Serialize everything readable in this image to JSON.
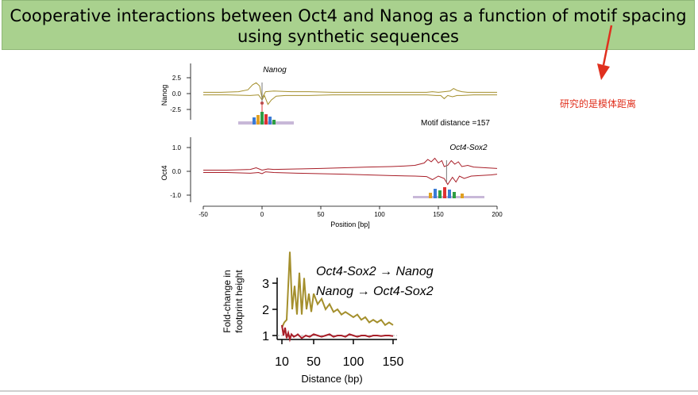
{
  "slide": {
    "title_line1": "Cooperative interactions between Oct4 and Nanog as a function of motif spacing",
    "title_line2": "using synthetic sequences",
    "note": "研究的是模体距离",
    "colors": {
      "banner": "#a9d18e",
      "arrow": "#e0301e",
      "note": "#e0301e",
      "nanog_series": "#a48f2c",
      "oct4_series": "#a81e28"
    }
  },
  "chart_data": [
    {
      "type": "line",
      "panel": "footprint-profiles",
      "xlabel": "Position [bp]",
      "xticks": [
        -50,
        0,
        50,
        100,
        150,
        200
      ],
      "xlim": [
        -50,
        200
      ],
      "tracks": [
        {
          "ylabel": "Nanog",
          "title": "Nanog",
          "yticks": [
            "2.5",
            "0.0",
            "-2.5"
          ],
          "ylim": [
            -3.5,
            3.5
          ],
          "annotation": "Motif distance =157",
          "motif_position": 0,
          "series": [
            {
              "strand": "forward",
              "x": [
                -50,
                -35,
                -20,
                -12,
                -8,
                -5,
                -2,
                0,
                3,
                10,
                25,
                40,
                60,
                80,
                100,
                120,
                140,
                145,
                150,
                155,
                160,
                163,
                166,
                170,
                175,
                180,
                190,
                200
              ],
              "values": [
                0.2,
                0.2,
                0.3,
                0.6,
                1.4,
                1.7,
                1.2,
                -0.7,
                0.3,
                0.4,
                0.3,
                0.3,
                0.2,
                0.2,
                0.2,
                0.2,
                0.2,
                0.3,
                0.2,
                0.3,
                0.4,
                0.8,
                0.5,
                0.3,
                0.2,
                0.2,
                0.2,
                0.2
              ]
            },
            {
              "strand": "reverse",
              "x": [
                -50,
                -30,
                -10,
                -3,
                0,
                2,
                5,
                8,
                12,
                20,
                40,
                60,
                80,
                100,
                120,
                140,
                148,
                152,
                155,
                158,
                162,
                166,
                170,
                180,
                190,
                200
              ],
              "values": [
                -0.2,
                -0.2,
                -0.3,
                -0.2,
                -1.0,
                -0.3,
                -1.7,
                -1.0,
                -0.4,
                -0.3,
                -0.3,
                -0.2,
                -0.2,
                -0.2,
                -0.2,
                -0.2,
                -0.3,
                -0.3,
                -0.8,
                -0.3,
                -0.5,
                -0.3,
                -0.3,
                -0.2,
                -0.2,
                -0.2
              ]
            }
          ]
        },
        {
          "ylabel": "Oct4",
          "title": "Oct4-Sox2",
          "yticks": [
            "1.0",
            "0.0",
            "-1.0"
          ],
          "ylim": [
            -1.5,
            1.5
          ],
          "motif_position": 157,
          "series": [
            {
              "strand": "forward",
              "x": [
                -50,
                -30,
                -10,
                -5,
                0,
                5,
                10,
                30,
                50,
                70,
                90,
                110,
                120,
                130,
                138,
                141,
                144,
                147,
                150,
                153,
                155,
                158,
                161,
                164,
                167,
                170,
                175,
                180,
                190,
                200
              ],
              "values": [
                0.05,
                0.05,
                0.08,
                0.15,
                0.05,
                0.1,
                0.08,
                0.1,
                0.12,
                0.15,
                0.18,
                0.2,
                0.22,
                0.25,
                0.35,
                0.5,
                0.4,
                0.55,
                0.35,
                0.45,
                0.2,
                0.25,
                0.45,
                0.3,
                0.4,
                0.2,
                0.25,
                0.18,
                0.15,
                0.12
              ]
            },
            {
              "strand": "reverse",
              "x": [
                -50,
                -30,
                -10,
                -3,
                0,
                3,
                10,
                30,
                50,
                70,
                90,
                110,
                130,
                140,
                145,
                150,
                155,
                158,
                162,
                165,
                168,
                172,
                178,
                185,
                195,
                200
              ],
              "values": [
                -0.05,
                -0.05,
                -0.08,
                -0.05,
                -0.1,
                -0.02,
                -0.05,
                -0.08,
                -0.1,
                -0.12,
                -0.15,
                -0.18,
                -0.2,
                -0.22,
                -0.35,
                -0.2,
                -0.3,
                -0.55,
                -0.25,
                -0.45,
                -0.2,
                -0.3,
                -0.2,
                -0.18,
                -0.15,
                -0.12
              ]
            }
          ]
        }
      ]
    },
    {
      "type": "line",
      "panel": "fold-change",
      "xlabel": "Distance (bp)",
      "ylabel": "Fold-change in footprint height",
      "xticks": [
        "10",
        "50",
        "100",
        "150"
      ],
      "yticks": [
        "1",
        "2",
        "3"
      ],
      "xlim": [
        10,
        150
      ],
      "ylim": [
        0.8,
        4.3
      ],
      "reference_line": 1,
      "series": [
        {
          "name": "Oct4-Sox2 → Nanog",
          "x": [
            10,
            13,
            16,
            20,
            23,
            26,
            29,
            32,
            35,
            38,
            41,
            44,
            47,
            50,
            55,
            60,
            65,
            70,
            75,
            80,
            85,
            90,
            95,
            100,
            105,
            110,
            115,
            120,
            125,
            130,
            135,
            140,
            145,
            150
          ],
          "values": [
            1.3,
            1.5,
            1.6,
            4.2,
            2.0,
            2.9,
            1.8,
            3.4,
            1.8,
            3.2,
            2.0,
            2.6,
            1.9,
            2.6,
            2.2,
            2.4,
            2.0,
            2.2,
            1.9,
            2.0,
            1.8,
            1.9,
            1.8,
            1.7,
            1.8,
            1.6,
            1.7,
            1.5,
            1.6,
            1.5,
            1.6,
            1.4,
            1.5,
            1.4
          ]
        },
        {
          "name": "Nanog → Oct4-Sox2",
          "x": [
            10,
            12,
            14,
            16,
            18,
            20,
            22,
            25,
            28,
            30,
            35,
            40,
            45,
            50,
            55,
            60,
            65,
            70,
            75,
            80,
            85,
            90,
            95,
            100,
            105,
            110,
            115,
            120,
            125,
            130,
            135,
            140,
            145,
            150
          ],
          "values": [
            1.4,
            1.0,
            1.3,
            0.9,
            1.1,
            0.85,
            1.05,
            0.95,
            1.0,
            1.05,
            0.9,
            1.0,
            0.95,
            1.05,
            1.0,
            0.95,
            1.0,
            1.05,
            0.95,
            1.0,
            1.0,
            0.95,
            1.05,
            1.0,
            0.95,
            1.0,
            1.0,
            0.95,
            1.0,
            1.0,
            0.98,
            1.0,
            1.0,
            0.98
          ]
        }
      ]
    }
  ]
}
